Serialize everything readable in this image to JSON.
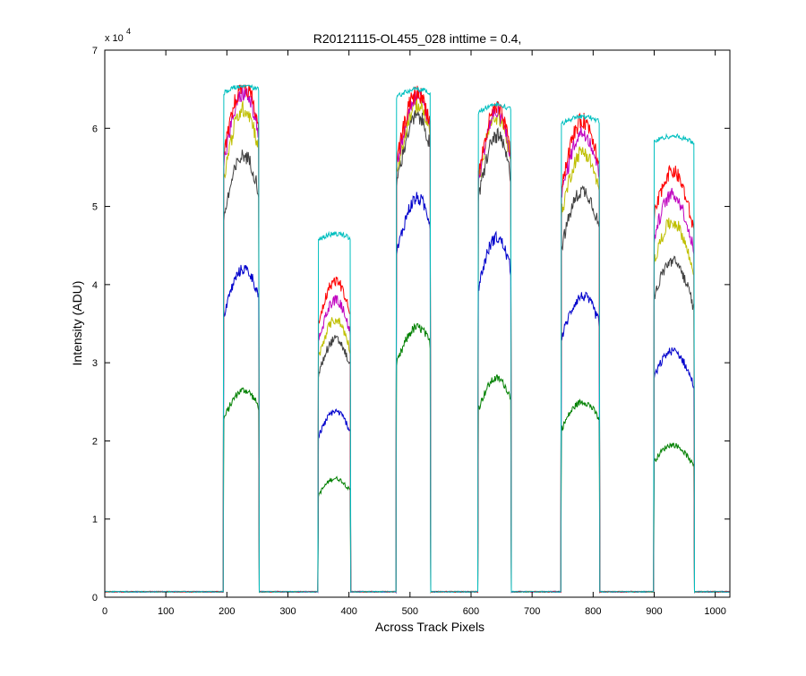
{
  "chart_data": {
    "type": "line",
    "title": "R20121115-OL455_028 inttime = 0.4,",
    "xlabel": "Across Track Pixels",
    "ylabel": "Intensity (ADU)",
    "xlim": [
      0,
      1024
    ],
    "ylim": [
      0,
      70000
    ],
    "xticks": [
      0,
      100,
      200,
      300,
      400,
      500,
      600,
      700,
      800,
      900,
      1000
    ],
    "yticks": [
      0,
      10000,
      20000,
      30000,
      40000,
      50000,
      60000,
      70000
    ],
    "ytick_labels": [
      "0",
      "1",
      "2",
      "3",
      "4",
      "5",
      "6",
      "7"
    ],
    "y_exponent_label": "x 10",
    "y_exponent_power": "4",
    "grid": false,
    "legend": "none",
    "baseline": 700,
    "saturation": 65500,
    "tracks": [
      {
        "x_start": 195,
        "x_end": 252,
        "peak_x": 228
      },
      {
        "x_start": 350,
        "x_end": 402,
        "peak_x": 378
      },
      {
        "x_start": 478,
        "x_end": 533,
        "peak_x": 512
      },
      {
        "x_start": 612,
        "x_end": 665,
        "peak_x": 642
      },
      {
        "x_start": 748,
        "x_end": 810,
        "peak_x": 783
      },
      {
        "x_start": 900,
        "x_end": 965,
        "peak_x": 930
      }
    ],
    "series": [
      {
        "color": "#008000",
        "peaks": [
          26500,
          15200,
          34500,
          28000,
          25000,
          19500
        ]
      },
      {
        "color": "#0000cc",
        "peaks": [
          42000,
          23800,
          51000,
          46000,
          38500,
          31500
        ]
      },
      {
        "color": "#404040",
        "peaks": [
          56500,
          33000,
          61500,
          59000,
          52000,
          43000
        ]
      },
      {
        "color": "#bfbf00",
        "peaks": [
          62500,
          35500,
          63000,
          61500,
          57000,
          48000
        ]
      },
      {
        "color": "#bf00bf",
        "peaks": [
          64500,
          38000,
          64000,
          62000,
          59500,
          51500
        ]
      },
      {
        "color": "#ff0000",
        "peaks": [
          65500,
          40500,
          64500,
          62500,
          61000,
          54500
        ]
      },
      {
        "color": "#00bfbf",
        "peaks": [
          65500,
          46500,
          65000,
          63000,
          61500,
          59000
        ]
      }
    ]
  }
}
